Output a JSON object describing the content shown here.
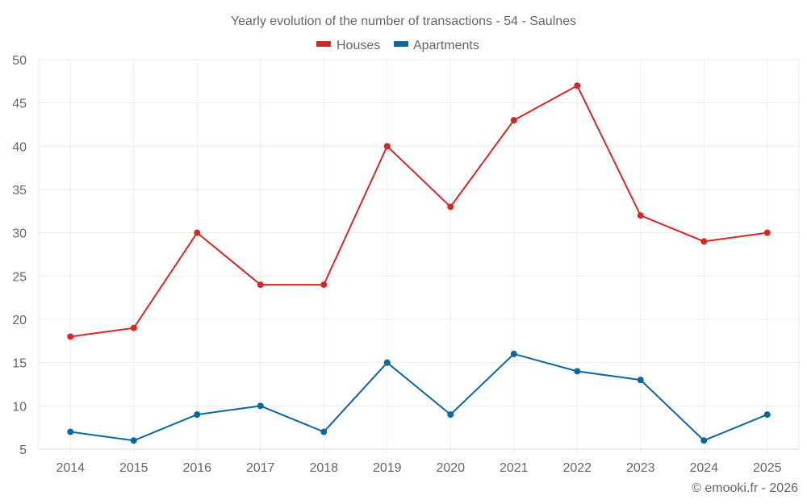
{
  "chart_data": {
    "type": "line",
    "title": "Yearly evolution of the number of transactions - 54 - Saulnes",
    "xlabel": "",
    "ylabel": "",
    "categories": [
      "2014",
      "2015",
      "2016",
      "2017",
      "2018",
      "2019",
      "2020",
      "2021",
      "2022",
      "2023",
      "2024",
      "2025"
    ],
    "series": [
      {
        "name": "Houses",
        "color": "#d62728",
        "values": [
          18,
          19,
          30,
          24,
          24,
          40,
          33,
          43,
          47,
          32,
          29,
          30
        ]
      },
      {
        "name": "Apartments",
        "color": "#0b67a0",
        "values": [
          7,
          6,
          9,
          10,
          7,
          15,
          9,
          16,
          14,
          13,
          6,
          9
        ]
      }
    ],
    "ylim": [
      5,
      50
    ],
    "yticks": [
      5,
      10,
      15,
      20,
      25,
      30,
      35,
      40,
      45,
      50
    ],
    "grid": true,
    "legend": "top-center",
    "footer": "© emooki.fr - 2026"
  }
}
